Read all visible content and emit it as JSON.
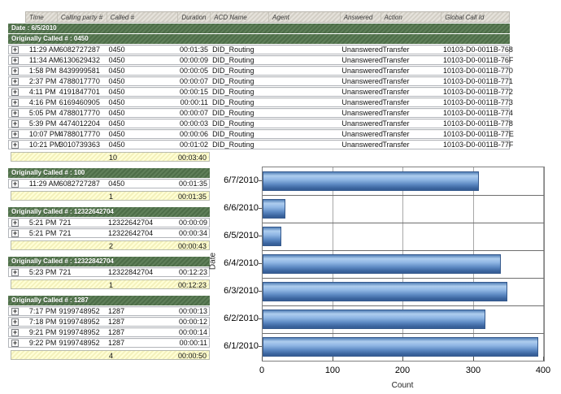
{
  "report": {
    "columns": [
      {
        "key": "time",
        "label": "Time"
      },
      {
        "key": "calling",
        "label": "Calling party #"
      },
      {
        "key": "called",
        "label": "Called #"
      },
      {
        "key": "duration",
        "label": "Duration"
      },
      {
        "key": "acd",
        "label": "ACD Name"
      },
      {
        "key": "agent",
        "label": "Agent"
      },
      {
        "key": "answered",
        "label": "Answered"
      },
      {
        "key": "action",
        "label": "Action"
      },
      {
        "key": "global",
        "label": "Global Call Id"
      }
    ],
    "date_band": "Date : 6/5/2010",
    "groups": [
      {
        "header": "Originally Called # : 0450",
        "full_width": true,
        "rows": [
          {
            "time": "11:29 AM",
            "calling": "6082727287",
            "called": "0450",
            "duration": "00:01:35",
            "acd": "DID_Routing",
            "agent": "",
            "answered": "Unanswered",
            "action": "Transfer",
            "global": "10103-D0-0011B-768"
          },
          {
            "time": "11:34 AM",
            "calling": "6130629432",
            "called": "0450",
            "duration": "00:00:09",
            "acd": "DID_Routing",
            "agent": "",
            "answered": "Unanswered",
            "action": "Transfer",
            "global": "10103-D0-0011B-76F"
          },
          {
            "time": "1:58 PM",
            "calling": "8439999581",
            "called": "0450",
            "duration": "00:00:05",
            "acd": "DID_Routing",
            "agent": "",
            "answered": "Unanswered",
            "action": "Transfer",
            "global": "10103-D0-0011B-770"
          },
          {
            "time": "2:37 PM",
            "calling": "4788017770",
            "called": "0450",
            "duration": "00:00:07",
            "acd": "DID_Routing",
            "agent": "",
            "answered": "Unanswered",
            "action": "Transfer",
            "global": "10103-D0-0011B-771"
          },
          {
            "time": "4:11 PM",
            "calling": "4191847701",
            "called": "0450",
            "duration": "00:00:15",
            "acd": "DID_Routing",
            "agent": "",
            "answered": "Unanswered",
            "action": "Transfer",
            "global": "10103-D0-0011B-772"
          },
          {
            "time": "4:16 PM",
            "calling": "6169460905",
            "called": "0450",
            "duration": "00:00:11",
            "acd": "DID_Routing",
            "agent": "",
            "answered": "Unanswered",
            "action": "Transfer",
            "global": "10103-D0-0011B-773"
          },
          {
            "time": "5:05 PM",
            "calling": "4788017770",
            "called": "0450",
            "duration": "00:00:07",
            "acd": "DID_Routing",
            "agent": "",
            "answered": "Unanswered",
            "action": "Transfer",
            "global": "10103-D0-0011B-774"
          },
          {
            "time": "5:39 PM",
            "calling": "4474012204",
            "called": "0450",
            "duration": "00:00:03",
            "acd": "DID_Routing",
            "agent": "",
            "answered": "Unanswered",
            "action": "Transfer",
            "global": "10103-D0-0011B-778"
          },
          {
            "time": "10:07 PM",
            "calling": "4788017770",
            "called": "0450",
            "duration": "00:00:06",
            "acd": "DID_Routing",
            "agent": "",
            "answered": "Unanswered",
            "action": "Transfer",
            "global": "10103-D0-0011B-77E"
          },
          {
            "time": "10:21 PM",
            "calling": "3010739363",
            "called": "0450",
            "duration": "00:01:02",
            "acd": "DID_Routing",
            "agent": "",
            "answered": "Unanswered",
            "action": "Transfer",
            "global": "10103-D0-0011B-77F"
          }
        ],
        "summary": {
          "count": "10",
          "duration": "00:03:40"
        }
      },
      {
        "header": "Originally Called # : 100",
        "full_width": false,
        "rows": [
          {
            "time": "11:29 AM",
            "calling": "6082727287",
            "called": "0450",
            "duration": "00:01:35"
          }
        ],
        "summary": {
          "count": "1",
          "duration": "00:01:35"
        }
      },
      {
        "header": "Originally Called # : 12322642704",
        "full_width": false,
        "rows": [
          {
            "time": "5:21 PM",
            "calling": "721",
            "called": "12322642704",
            "duration": "00:00:09"
          },
          {
            "time": "5:21 PM",
            "calling": "721",
            "called": "12322642704",
            "duration": "00:00:34"
          }
        ],
        "summary": {
          "count": "2",
          "duration": "00:00:43"
        }
      },
      {
        "header": "Originally Called # : 12322842704",
        "full_width": false,
        "rows": [
          {
            "time": "5:23 PM",
            "calling": "721",
            "called": "12322842704",
            "duration": "00:12:23"
          }
        ],
        "summary": {
          "count": "1",
          "duration": "00:12:23"
        }
      },
      {
        "header": "Originally Called # : 1287",
        "full_width": false,
        "rows": [
          {
            "time": "7:17 PM",
            "calling": "9199748952",
            "called": "1287",
            "duration": "00:00:13"
          },
          {
            "time": "7:18 PM",
            "calling": "9199748952",
            "called": "1287",
            "duration": "00:00:12"
          },
          {
            "time": "9:21 PM",
            "calling": "9199748952",
            "called": "1287",
            "duration": "00:00:14"
          },
          {
            "time": "9:22 PM",
            "calling": "9199748952",
            "called": "1287",
            "duration": "00:00:11"
          }
        ],
        "summary": {
          "count": "4",
          "duration": "00:00:50"
        }
      }
    ]
  },
  "chart_data": {
    "type": "bar",
    "orientation": "horizontal",
    "categories": [
      "6/7/2010",
      "6/6/2010",
      "6/5/2010",
      "6/4/2010",
      "6/3/2010",
      "6/2/2010",
      "6/1/2010"
    ],
    "values": [
      307,
      32,
      27,
      339,
      348,
      317,
      392
    ],
    "title": "",
    "xlabel": "Count",
    "ylabel": "Date",
    "xlim": [
      0,
      400
    ],
    "xticks": [
      0,
      100,
      200,
      300,
      400
    ],
    "grid": true,
    "legend": "none"
  },
  "colors": {
    "group_band_green": "#4d6d48",
    "summary_yellow": "#f4f1bc",
    "bar_blue": "#5c88c2",
    "gridline": "#a8a8a8",
    "row_border": "#b2b5ba"
  }
}
